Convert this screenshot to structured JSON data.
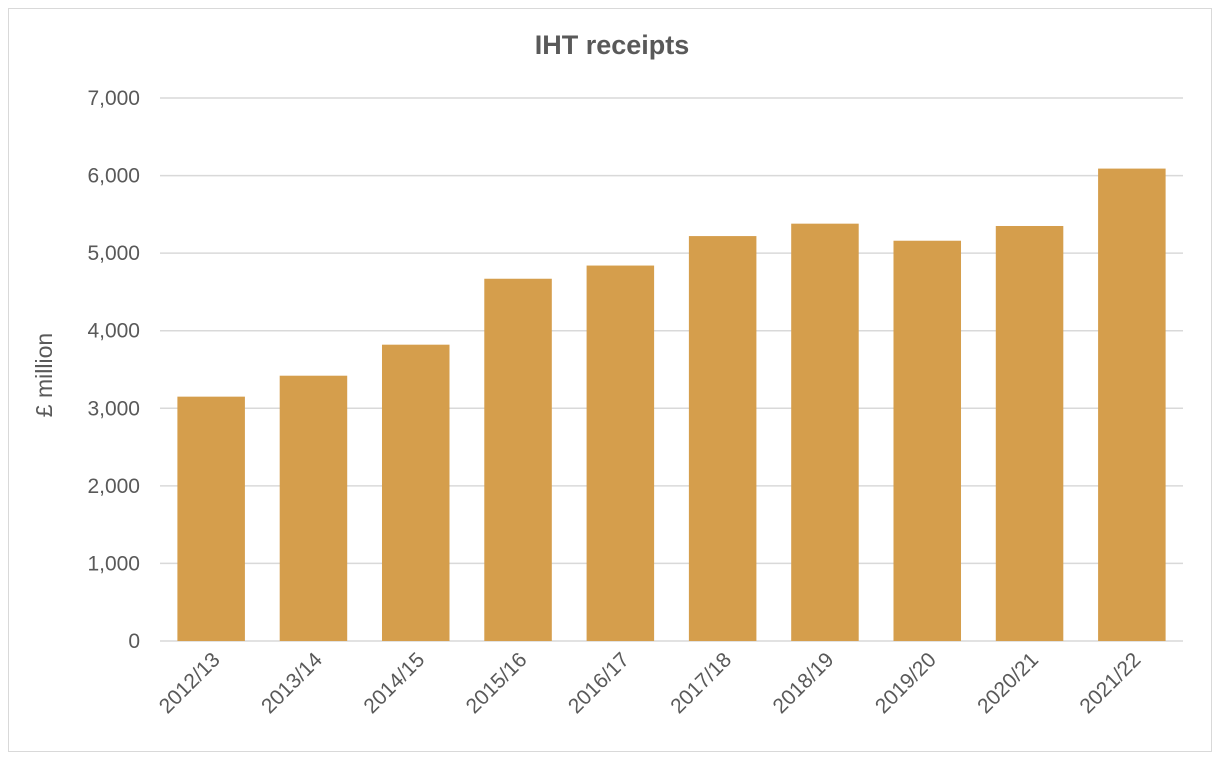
{
  "chart_data": {
    "type": "bar",
    "title": "IHT receipts",
    "ylabel": "£ million",
    "xlabel": "",
    "categories": [
      "2012/13",
      "2013/14",
      "2014/15",
      "2015/16",
      "2016/17",
      "2017/18",
      "2018/19",
      "2019/20",
      "2020/21",
      "2021/22"
    ],
    "values": [
      3150,
      3420,
      3820,
      4670,
      4840,
      5220,
      5380,
      5160,
      5350,
      6090
    ],
    "yticks": [
      "0",
      "1,000",
      "2,000",
      "3,000",
      "4,000",
      "5,000",
      "6,000",
      "7,000"
    ],
    "ylim": [
      0,
      7000
    ],
    "grid": true,
    "legend": "none",
    "colors": {
      "bar": "#D59E4C",
      "grid": "#d9d9d9",
      "text": "#595959"
    }
  }
}
